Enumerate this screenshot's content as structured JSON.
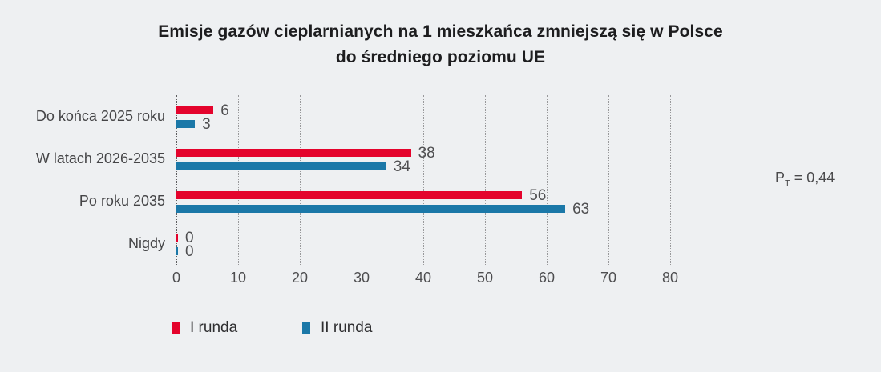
{
  "title": {
    "line1": "Emisje gazów cieplarnianych na 1 mieszkańca zmniejszą się w Polsce",
    "line2": "do średniego poziomu UE"
  },
  "legend": {
    "items": [
      {
        "label": "I runda"
      },
      {
        "label": "II runda"
      }
    ]
  },
  "annotation": {
    "symbol": "P",
    "subscript": "T",
    "value": "= 0,44"
  },
  "colors": {
    "round1": "#e4032c",
    "round2": "#1b78a8",
    "background": "#eef0f2",
    "grid": "#98989a",
    "text": "#454547"
  },
  "chart_data": {
    "type": "bar",
    "orientation": "horizontal",
    "title": "Emisje gazów cieplarnianych na 1 mieszkańca zmniejszą się w Polsce do średniego poziomu UE",
    "categories": [
      "Do końca 2025 roku",
      "W latach 2026-2035",
      "Po roku 2035",
      "Nigdy"
    ],
    "series": [
      {
        "name": "I runda",
        "color": "#e4032c",
        "values": [
          6,
          38,
          56,
          0
        ]
      },
      {
        "name": "II runda",
        "color": "#1b78a8",
        "values": [
          3,
          34,
          63,
          0
        ]
      }
    ],
    "x_ticks": [
      0,
      10,
      20,
      30,
      40,
      50,
      60,
      70,
      80
    ],
    "xlim": [
      0,
      80
    ],
    "grid": "vertical-dotted",
    "legend_position": "bottom-left",
    "annotation": "PT = 0,44"
  }
}
